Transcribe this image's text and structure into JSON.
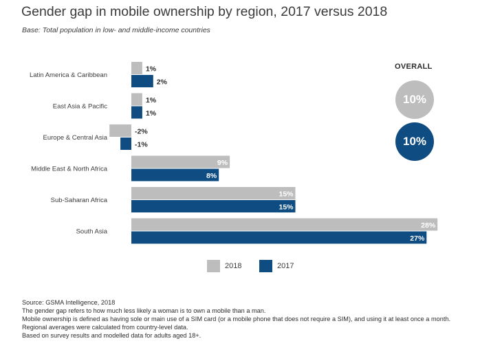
{
  "title": "Gender gap in mobile ownership by region, 2017 versus 2018",
  "subtitle": "Base: Total population in low- and middle-income countries",
  "colors": {
    "2018": "#bdbdbd",
    "2017": "#0f4c81",
    "text": "#3a3a3a"
  },
  "chart_data": {
    "type": "bar",
    "orientation": "horizontal",
    "title": "Gender gap in mobile ownership by region, 2017 versus 2018",
    "categories": [
      "Latin America & Caribbean",
      "East Asia & Pacific",
      "Europe & Central Asia",
      "Middle East & North Africa",
      "Sub-Saharan Africa",
      "South Asia"
    ],
    "series": [
      {
        "name": "2018",
        "values": [
          1,
          1,
          -2,
          9,
          15,
          28
        ],
        "labels": [
          "1%",
          "1%",
          "-2%",
          "9%",
          "15%",
          "28%"
        ]
      },
      {
        "name": "2017",
        "values": [
          2,
          1,
          -1,
          8,
          15,
          27
        ],
        "labels": [
          "2%",
          "1%",
          "-1%",
          "8%",
          "15%",
          "27%"
        ]
      }
    ],
    "unit": "%",
    "xlim": [
      -2,
      28
    ],
    "legend": [
      "2018",
      "2017"
    ],
    "legend_position": "bottom",
    "overall": {
      "label": "OVERALL",
      "2018": "10%",
      "2017": "10%"
    }
  },
  "legend": {
    "item_2018": "2018",
    "item_2017": "2017"
  },
  "notes": [
    "Source: GSMA Intelligence, 2018",
    "The gender gap refers to how much less likely a woman is to own a mobile than a man.",
    "Mobile ownership is defined as having sole or main use of a SIM card (or a mobile phone that does not require a SIM), and using it at least once a month.",
    "Regional averages were calculated from country-level data.",
    "Based on survey results and modelled data for adults aged 18+."
  ]
}
